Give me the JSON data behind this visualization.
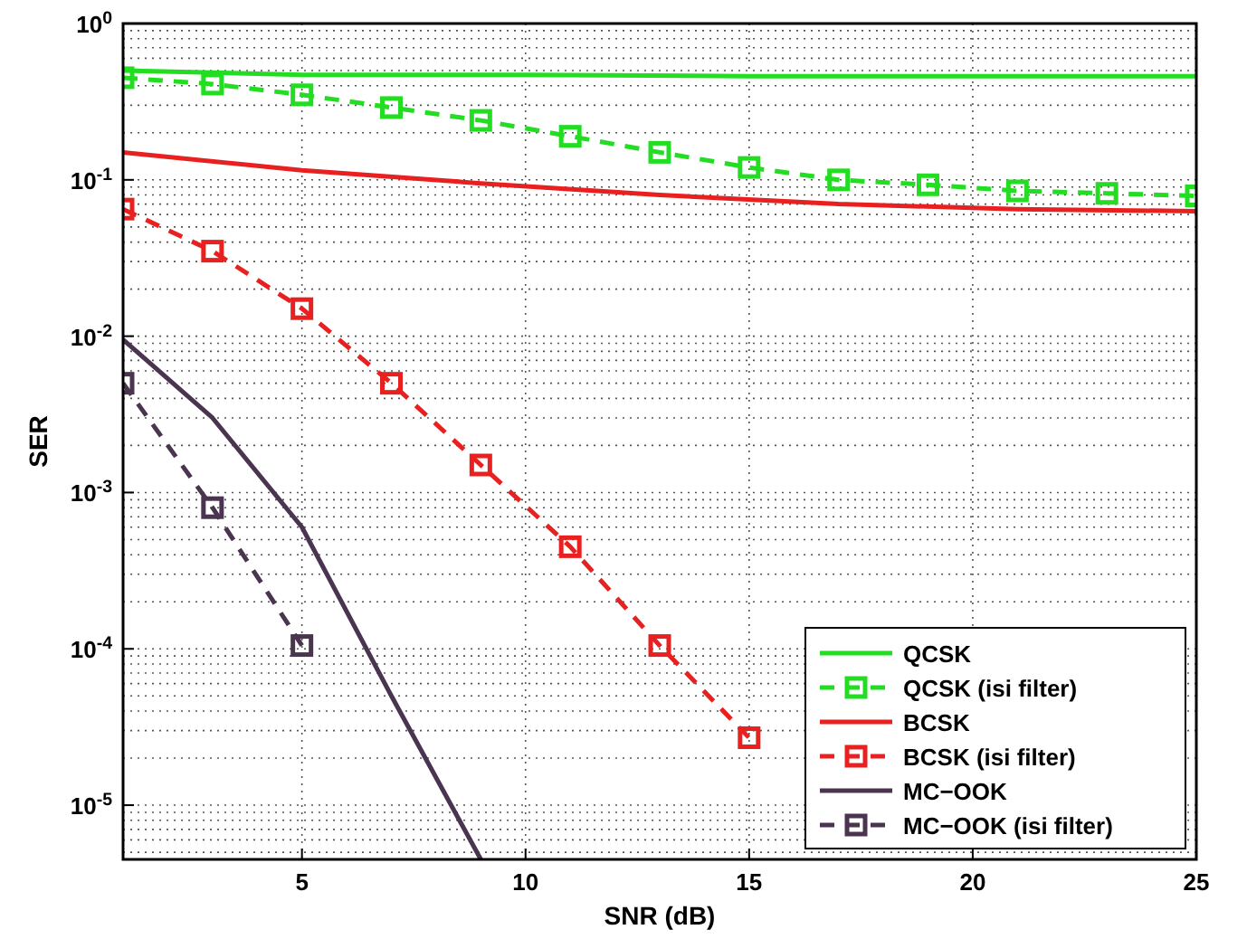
{
  "chart_data": {
    "type": "line",
    "xlabel": "SNR (dB)",
    "ylabel": "SER",
    "log": "y",
    "grid": true,
    "legend": "bottom right",
    "xlim": [
      1,
      25
    ],
    "xticks": [
      5,
      10,
      15,
      20,
      25
    ],
    "ylim": [
      4.5e-06,
      1
    ],
    "yticks": [
      {
        "value": 1,
        "label": "10$^{0}$"
      },
      {
        "value": 0.1,
        "label": "10$^{-1}$"
      },
      {
        "value": 0.01,
        "label": "10$^{-2}$"
      },
      {
        "value": 0.001,
        "label": "10$^{-3}$"
      },
      {
        "value": 0.0001,
        "label": "10$^{-4}$"
      },
      {
        "value": 1e-05,
        "label": "10$^{-5}$"
      }
    ],
    "series": [
      {
        "name": "QCSK",
        "color": "#22dd22",
        "line_style": "solid",
        "marker": "none",
        "x": [
          1,
          5,
          10,
          15,
          25
        ],
        "values": [
          0.5,
          0.47,
          0.47,
          0.46,
          0.46
        ]
      },
      {
        "name": "QCSK (isi filter)",
        "color": "#22dd22",
        "line_style": "dashed",
        "marker": "square",
        "x": [
          1,
          3,
          5,
          7,
          9,
          11,
          13,
          15,
          17,
          19,
          21,
          23,
          25
        ],
        "values": [
          0.45,
          0.41,
          0.35,
          0.29,
          0.24,
          0.19,
          0.15,
          0.12,
          0.1,
          0.093,
          0.085,
          0.082,
          0.079
        ]
      },
      {
        "name": "BCSK",
        "color": "#e8201f",
        "line_style": "solid",
        "marker": "none",
        "x": [
          1,
          5,
          9,
          13,
          17,
          21,
          25
        ],
        "values": [
          0.15,
          0.115,
          0.095,
          0.08,
          0.07,
          0.065,
          0.063
        ]
      },
      {
        "name": "BCSK (isi filter)",
        "color": "#e8201f",
        "line_style": "dashed",
        "marker": "square",
        "x": [
          1,
          3,
          5,
          7,
          9,
          11,
          13,
          15
        ],
        "values": [
          0.065,
          0.035,
          0.015,
          0.005,
          0.0015,
          0.00045,
          0.000105,
          2.7e-05
        ]
      },
      {
        "name": "MC−OOK",
        "color": "#4a3450",
        "line_style": "solid",
        "marker": "none",
        "x": [
          1,
          3,
          5,
          7,
          9
        ],
        "values": [
          0.0095,
          0.003,
          0.0006,
          5e-05,
          4.5e-06
        ]
      },
      {
        "name": "MC−OOK (isi filter)",
        "color": "#4a3450",
        "line_style": "dashed",
        "marker": "square",
        "x": [
          1,
          3,
          5
        ],
        "values": [
          0.005,
          0.0008,
          0.000105
        ]
      }
    ]
  }
}
